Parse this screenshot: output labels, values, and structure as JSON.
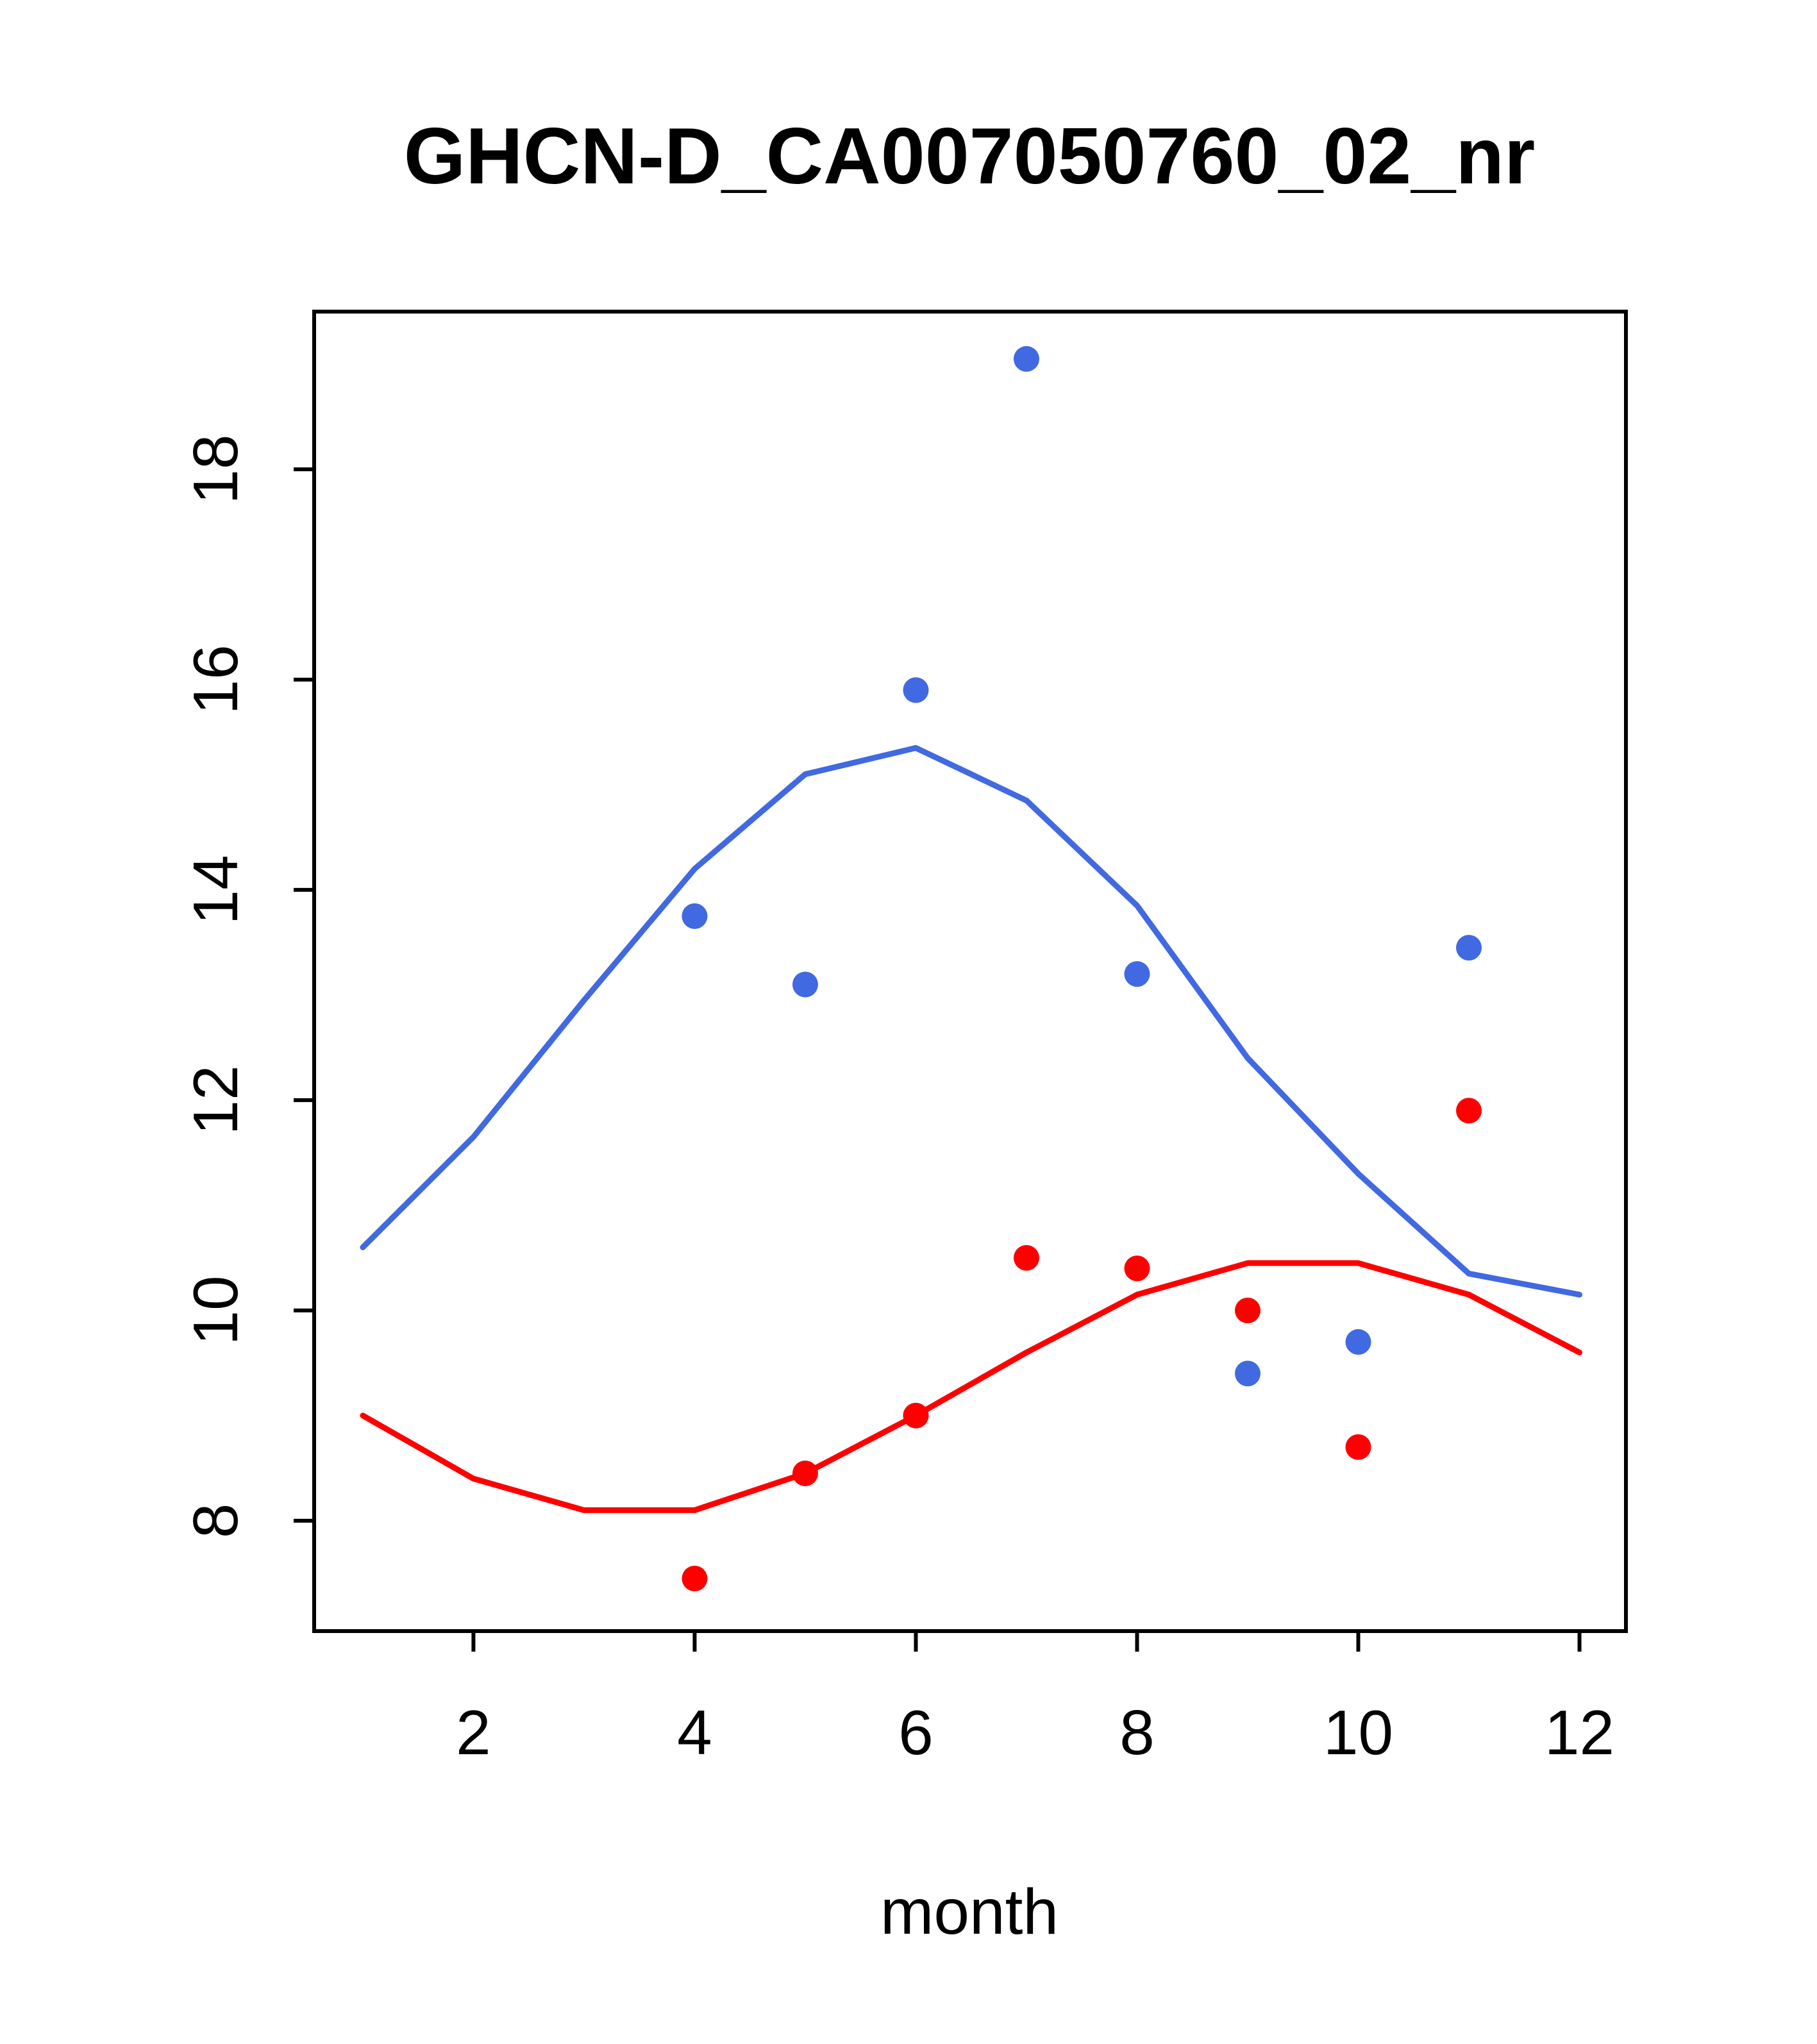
{
  "chart_data": {
    "type": "line",
    "title": "GHCN-D_CA007050760_02_nr",
    "xlabel": "month",
    "ylabel": "",
    "xlim": [
      0.56,
      12.42
    ],
    "ylim": [
      6.95,
      19.5
    ],
    "xticks": [
      2,
      4,
      6,
      8,
      10,
      12
    ],
    "yticks": [
      8,
      10,
      12,
      14,
      16,
      18
    ],
    "grid": false,
    "legend": "none",
    "colors": {
      "blue_series": "#4169E1",
      "red_series": "#FF0000",
      "axis": "#000000",
      "background": "#FFFFFF"
    },
    "series": [
      {
        "name": "blue-line",
        "type": "line",
        "color": "#4169E1",
        "x": [
          1,
          2,
          3,
          4,
          5,
          6,
          7,
          8,
          9,
          10,
          11,
          12
        ],
        "y": [
          10.6,
          11.65,
          12.95,
          14.2,
          15.1,
          15.35,
          14.85,
          13.85,
          12.4,
          11.3,
          10.35,
          10.15
        ]
      },
      {
        "name": "red-line",
        "type": "line",
        "color": "#FF0000",
        "x": [
          1,
          2,
          3,
          4,
          5,
          6,
          7,
          8,
          9,
          10,
          11,
          12
        ],
        "y": [
          9.0,
          8.4,
          8.1,
          8.1,
          8.45,
          9.0,
          9.6,
          10.15,
          10.45,
          10.45,
          10.15,
          9.6
        ]
      },
      {
        "name": "blue-points",
        "type": "scatter",
        "color": "#4169E1",
        "x": [
          4,
          5,
          6,
          7,
          8,
          9,
          10,
          11
        ],
        "y": [
          13.75,
          13.1,
          15.9,
          19.05,
          13.2,
          9.4,
          9.7,
          13.45
        ]
      },
      {
        "name": "red-points",
        "type": "scatter",
        "color": "#FF0000",
        "x": [
          4,
          5,
          6,
          7,
          8,
          9,
          10,
          11
        ],
        "y": [
          7.45,
          8.45,
          9.0,
          10.5,
          10.4,
          10.0,
          8.7,
          11.9
        ]
      }
    ]
  }
}
